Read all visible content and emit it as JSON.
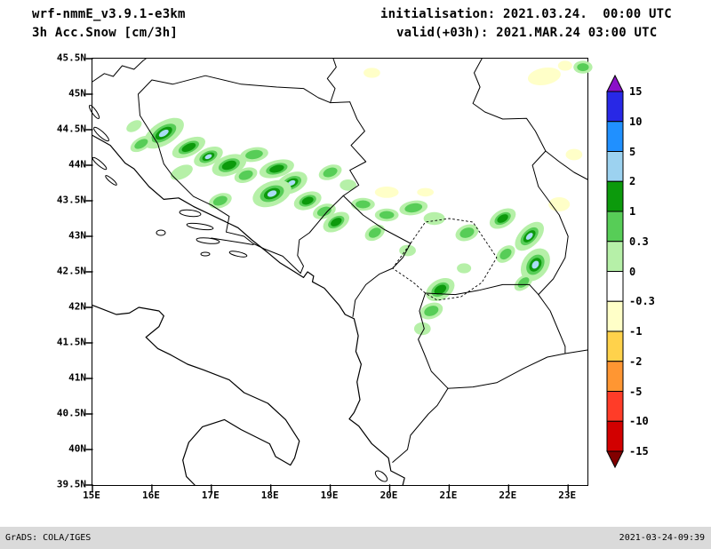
{
  "header": {
    "model": "wrf-nmmE_v3.9.1-e3km",
    "product": "3h Acc.Snow [cm/3h]",
    "init": "initialisation: 2021.03.24.  00:00 UTC",
    "valid": "valid(+03h): 2021.MAR.24 03:00 UTC"
  },
  "footer": {
    "left": "GrADS: COLA/IGES",
    "right": "2021-03-24-09:39"
  },
  "axes": {
    "lat_ticks": [
      "45.5N",
      "45N",
      "44.5N",
      "44N",
      "43.5N",
      "43N",
      "42.5N",
      "42N",
      "41.5N",
      "41N",
      "40.5N",
      "40N",
      "39.5N"
    ],
    "lon_ticks": [
      "15E",
      "16E",
      "17E",
      "18E",
      "19E",
      "20E",
      "21E",
      "22E",
      "23E"
    ],
    "lat_range": [
      39.5,
      45.5
    ],
    "lon_range": [
      15,
      23.3
    ]
  },
  "chart_data": {
    "type": "heatmap",
    "title": "3h Acc.Snow [cm/3h]",
    "model": "wrf-nmmE_v3.9.1-e3km",
    "initialisation": "2021.03.24. 00:00 UTC",
    "valid": "2021.MAR.24 03:00 UTC (+03h)",
    "units": "cm/3h",
    "region": "Balkans / Adriatic (15E-23.3E, 39.5N-45.5N)",
    "legend_position": "right",
    "colorbar_labels": [
      "15",
      "10",
      "5",
      "2",
      "1",
      "0.3",
      "0",
      "-0.3",
      "-1",
      "-2",
      "-5",
      "-10",
      "-15"
    ],
    "colorbar_colors": [
      "#8a10c8",
      "#2828e6",
      "#2090ff",
      "#9cd2f0",
      "#0c9a0c",
      "#57cd57",
      "#b6f0a8",
      "#ffffff",
      "#ffffc8",
      "#ffd24b",
      "#ff9632",
      "#ff3c28",
      "#d20000",
      "#820000"
    ],
    "patch_colors": {
      "light": "#b6f0a8",
      "mid": "#57cd57",
      "dark": "#0c9a0c",
      "core": "#aadcf5",
      "yellow": "#ffffc8"
    },
    "snow_patches": [
      [
        16.2,
        44.45,
        0.38,
        0.16,
        -32,
        5
      ],
      [
        15.82,
        44.3,
        0.2,
        0.09,
        -30,
        1
      ],
      [
        15.7,
        44.55,
        0.14,
        0.07,
        -30,
        0.3
      ],
      [
        16.62,
        44.25,
        0.3,
        0.12,
        -25,
        2
      ],
      [
        16.95,
        44.12,
        0.26,
        0.12,
        -25,
        5
      ],
      [
        16.5,
        43.9,
        0.2,
        0.09,
        -25,
        0.3
      ],
      [
        17.3,
        44.0,
        0.3,
        0.14,
        -20,
        2
      ],
      [
        17.72,
        44.15,
        0.24,
        0.1,
        -10,
        1
      ],
      [
        17.58,
        43.86,
        0.2,
        0.1,
        -20,
        1
      ],
      [
        18.1,
        43.95,
        0.3,
        0.12,
        -15,
        2
      ],
      [
        18.35,
        43.75,
        0.28,
        0.14,
        -25,
        5
      ],
      [
        18.02,
        43.6,
        0.34,
        0.17,
        -22,
        5
      ],
      [
        17.15,
        43.5,
        0.2,
        0.1,
        -20,
        1
      ],
      [
        18.62,
        43.5,
        0.24,
        0.12,
        -20,
        2
      ],
      [
        18.9,
        43.35,
        0.2,
        0.1,
        -20,
        1
      ],
      [
        19.1,
        43.2,
        0.24,
        0.12,
        -30,
        2
      ],
      [
        19.0,
        43.9,
        0.2,
        0.1,
        -20,
        1
      ],
      [
        19.3,
        43.72,
        0.14,
        0.08,
        0,
        0.3
      ],
      [
        19.55,
        43.45,
        0.2,
        0.09,
        0,
        1
      ],
      [
        19.75,
        43.05,
        0.18,
        0.1,
        -30,
        1
      ],
      [
        19.95,
        43.3,
        0.2,
        0.09,
        0,
        1
      ],
      [
        20.4,
        43.4,
        0.24,
        0.1,
        -10,
        1
      ],
      [
        20.75,
        43.25,
        0.18,
        0.09,
        0,
        0.3
      ],
      [
        20.3,
        42.8,
        0.14,
        0.08,
        0,
        0.3
      ],
      [
        21.3,
        43.05,
        0.2,
        0.11,
        -20,
        1
      ],
      [
        21.9,
        43.25,
        0.24,
        0.12,
        -30,
        2
      ],
      [
        21.95,
        42.75,
        0.18,
        0.1,
        -40,
        1
      ],
      [
        22.35,
        43.0,
        0.3,
        0.14,
        -45,
        5
      ],
      [
        22.45,
        42.6,
        0.3,
        0.18,
        -55,
        5
      ],
      [
        22.25,
        42.35,
        0.18,
        0.09,
        -40,
        1
      ],
      [
        20.85,
        42.25,
        0.26,
        0.14,
        -30,
        2
      ],
      [
        20.7,
        41.95,
        0.2,
        0.11,
        -20,
        1
      ],
      [
        20.55,
        41.7,
        0.14,
        0.09,
        0,
        0.3
      ],
      [
        21.25,
        42.55,
        0.12,
        0.07,
        0,
        0.3
      ],
      [
        23.25,
        45.38,
        0.16,
        0.09,
        0,
        1
      ]
    ],
    "negative_patches": [
      [
        22.6,
        45.25,
        0.28,
        0.12,
        -10
      ],
      [
        22.95,
        45.4,
        0.12,
        0.07,
        0
      ],
      [
        19.95,
        43.62,
        0.2,
        0.08,
        0
      ],
      [
        19.7,
        45.3,
        0.14,
        0.07,
        0
      ],
      [
        22.85,
        43.45,
        0.18,
        0.1,
        0
      ],
      [
        23.1,
        44.15,
        0.14,
        0.08,
        0
      ],
      [
        20.6,
        43.62,
        0.14,
        0.06,
        0
      ]
    ]
  }
}
